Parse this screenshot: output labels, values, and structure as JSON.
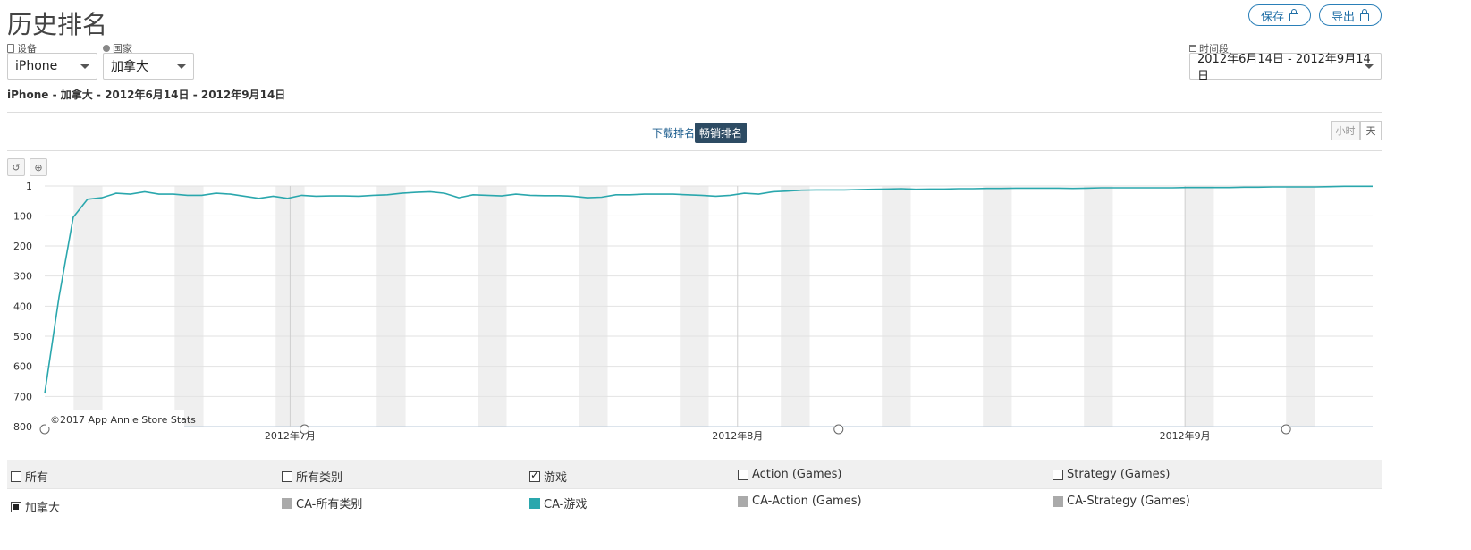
{
  "page": {
    "title": "历史排名"
  },
  "header_actions": {
    "save_label": "保存",
    "export_label": "导出"
  },
  "filters": {
    "device": {
      "label": "设备",
      "value": "iPhone"
    },
    "country": {
      "label": "国家",
      "value": "加拿大"
    },
    "period": {
      "label": "时间段",
      "value": "2012年6月14日 - 2012年9月14日"
    }
  },
  "subtitle": {
    "device": "iPhone",
    "rest": " - 加拿大 - 2012年6月14日 - 2012年9月14日"
  },
  "tabs": {
    "downloads": "下载排名",
    "grossing": "畅销排名"
  },
  "granularity": {
    "hour": "小时",
    "day": "天"
  },
  "toolbar": {
    "reset_icon": "reset-icon",
    "zoom_icon": "zoom-icon"
  },
  "copyright": "©2017 App Annie Store Stats",
  "chart_data": {
    "type": "line",
    "y_axis": {
      "reversed": true,
      "min": 1,
      "max": 800,
      "ticks": [
        "1",
        "100",
        "200",
        "300",
        "400",
        "500",
        "600",
        "700",
        "800"
      ]
    },
    "x_axis": {
      "start": "2012-06-14",
      "end": "2012-09-14",
      "ticks": [
        "2012年7月",
        "2012年8月",
        "2012年9月"
      ]
    },
    "weekend_shading": true,
    "series": [
      {
        "color": "#2aa7ad",
        "values": [
          690,
          370,
          105,
          45,
          40,
          25,
          28,
          20,
          28,
          28,
          32,
          32,
          25,
          28,
          35,
          42,
          35,
          42,
          32,
          35,
          34,
          34,
          35,
          32,
          30,
          25,
          22,
          20,
          25,
          40,
          30,
          32,
          34,
          28,
          32,
          33,
          33,
          35,
          40,
          38,
          30,
          30,
          28,
          28,
          28,
          30,
          32,
          35,
          32,
          25,
          28,
          20,
          18,
          15,
          14,
          14,
          14,
          13,
          12,
          11,
          10,
          12,
          11,
          11,
          10,
          10,
          9,
          9,
          8,
          8,
          8,
          8,
          9,
          8,
          7,
          7,
          7,
          7,
          7,
          7,
          6,
          6,
          6,
          6,
          5,
          5,
          4,
          4,
          4,
          4,
          3,
          2,
          2,
          2
        ]
      }
    ]
  },
  "legend": {
    "header": [
      {
        "label": "所有",
        "checked": false
      },
      {
        "label": "所有类别",
        "checked": false
      },
      {
        "label": "游戏",
        "checked": true
      },
      {
        "label": "Action (Games)",
        "checked": false
      },
      {
        "label": "Strategy (Games)",
        "checked": false
      }
    ],
    "row": {
      "country": "加拿大",
      "items": [
        {
          "label": "CA-所有类别",
          "color": "#aaaaaa"
        },
        {
          "label": "CA-游戏",
          "color": "#2aa7ad"
        },
        {
          "label": "CA-Action (Games)",
          "color": "#aaaaaa"
        },
        {
          "label": "CA-Strategy (Games)",
          "color": "#aaaaaa"
        }
      ]
    }
  }
}
